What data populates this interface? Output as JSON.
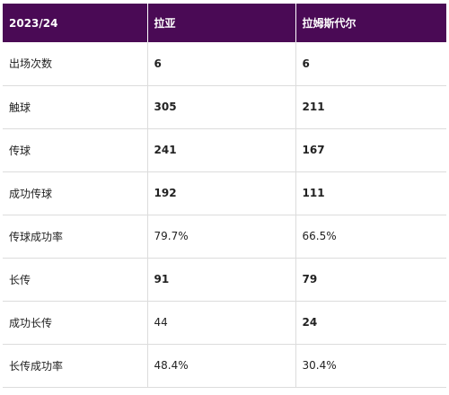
{
  "header": {
    "season": "2023/24",
    "player_a": "拉亚",
    "player_b": "拉姆斯代尔"
  },
  "rows": [
    {
      "label": "出场次数",
      "a": "6",
      "b": "6"
    },
    {
      "label": "触球",
      "a": "305",
      "b": "211"
    },
    {
      "label": "传球",
      "a": "241",
      "b": "167"
    },
    {
      "label": "成功传球",
      "a": "192",
      "b": "111"
    },
    {
      "label": "传球成功率",
      "a": "79.7%",
      "b": "66.5%"
    },
    {
      "label": "长传",
      "a": "91",
      "b": "79"
    },
    {
      "label": "成功长传",
      "a": "44",
      "b": "24"
    },
    {
      "label": "长传成功率",
      "a": "48.4%",
      "b": "30.4%"
    }
  ]
}
